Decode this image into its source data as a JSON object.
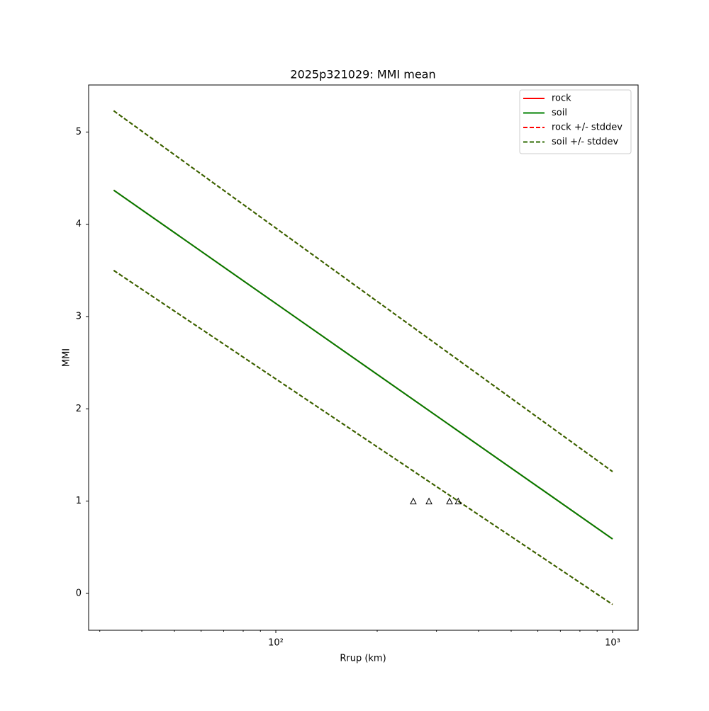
{
  "chart_data": {
    "type": "line",
    "title": "2025p321029: MMI mean",
    "xlabel": "Rrup (km)",
    "ylabel": "MMI",
    "xscale": "log",
    "x": [
      33,
      1000
    ],
    "series": [
      {
        "name": "rock",
        "color": "#ff0000",
        "dash": false,
        "values": [
          4.37,
          0.59
        ]
      },
      {
        "name": "soil",
        "color": "#008000",
        "dash": false,
        "values": [
          4.37,
          0.59
        ]
      },
      {
        "name": "rock +/- stddev",
        "color": "#ff0000",
        "dash": true,
        "values": [
          5.23,
          1.32
        ],
        "lower": [
          3.5,
          -0.12
        ]
      },
      {
        "name": "soil +/- stddev",
        "color": "#2d6a00",
        "dash": true,
        "values": [
          5.23,
          1.32
        ],
        "lower": [
          3.5,
          -0.12
        ]
      }
    ],
    "markers": {
      "x": [
        256,
        285,
        328,
        348
      ],
      "values": [
        1,
        1,
        1,
        1
      ],
      "color": "#000000"
    },
    "xlim": [
      27.8,
      1191
    ],
    "ylim": [
      -0.4,
      5.51
    ],
    "xticks": [
      {
        "value": 100,
        "label": "10²"
      },
      {
        "value": 1000,
        "label": "10³"
      }
    ],
    "xticks_minor": [
      30,
      40,
      50,
      60,
      70,
      80,
      90,
      200,
      300,
      400,
      500,
      600,
      700,
      800,
      900
    ],
    "yticks": [
      0,
      1,
      2,
      3,
      4,
      5
    ],
    "legend": "upper right",
    "grid": false
  }
}
